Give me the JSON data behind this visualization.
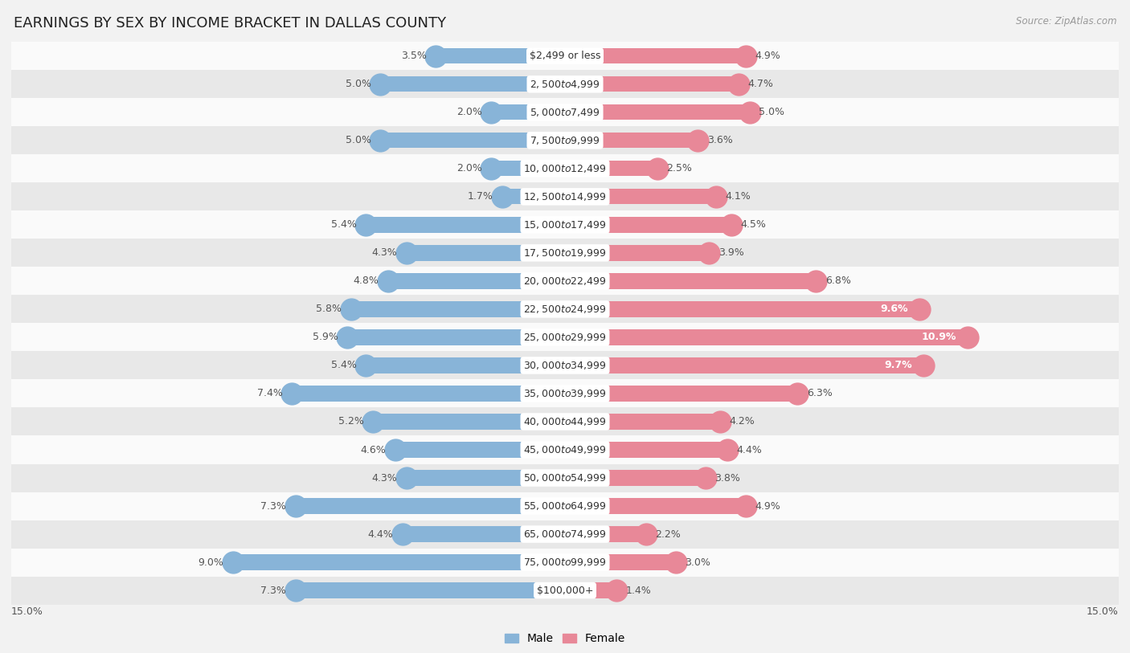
{
  "title": "EARNINGS BY SEX BY INCOME BRACKET IN DALLAS COUNTY",
  "source": "Source: ZipAtlas.com",
  "categories": [
    "$2,499 or less",
    "$2,500 to $4,999",
    "$5,000 to $7,499",
    "$7,500 to $9,999",
    "$10,000 to $12,499",
    "$12,500 to $14,999",
    "$15,000 to $17,499",
    "$17,500 to $19,999",
    "$20,000 to $22,499",
    "$22,500 to $24,999",
    "$25,000 to $29,999",
    "$30,000 to $34,999",
    "$35,000 to $39,999",
    "$40,000 to $44,999",
    "$45,000 to $49,999",
    "$50,000 to $54,999",
    "$55,000 to $64,999",
    "$65,000 to $74,999",
    "$75,000 to $99,999",
    "$100,000+"
  ],
  "male_values": [
    3.5,
    5.0,
    2.0,
    5.0,
    2.0,
    1.7,
    5.4,
    4.3,
    4.8,
    5.8,
    5.9,
    5.4,
    7.4,
    5.2,
    4.6,
    4.3,
    7.3,
    4.4,
    9.0,
    7.3
  ],
  "female_values": [
    4.9,
    4.7,
    5.0,
    3.6,
    2.5,
    4.1,
    4.5,
    3.9,
    6.8,
    9.6,
    10.9,
    9.7,
    6.3,
    4.2,
    4.4,
    3.8,
    4.9,
    2.2,
    3.0,
    1.4
  ],
  "male_color": "#88b4d8",
  "female_color": "#e88898",
  "background_color": "#f2f2f2",
  "row_color_light": "#fafafa",
  "row_color_dark": "#e8e8e8",
  "xlim": 15.0,
  "bar_height": 0.55,
  "title_fontsize": 13,
  "label_fontsize": 9,
  "category_fontsize": 9,
  "legend_fontsize": 10
}
